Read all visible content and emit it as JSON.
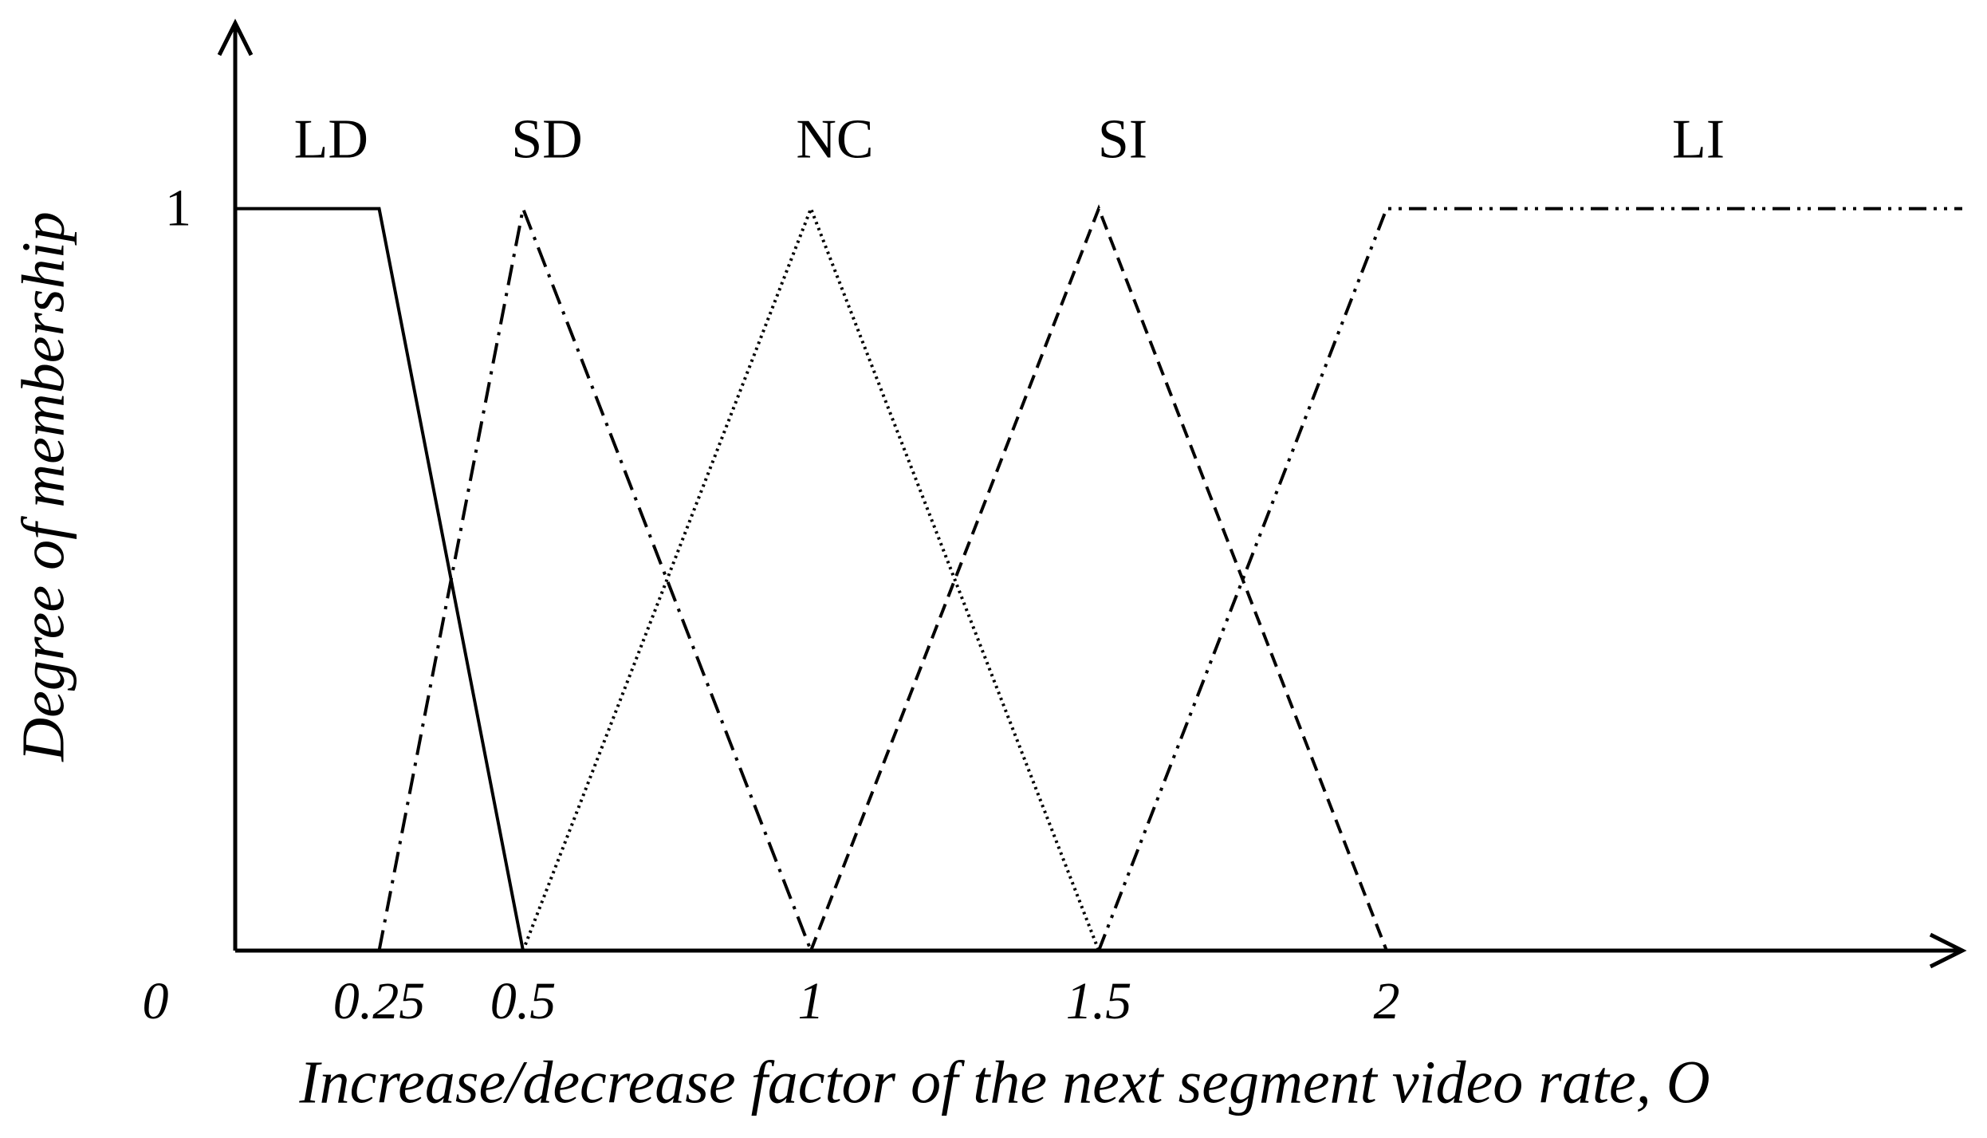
{
  "chart_data": {
    "type": "line",
    "x_label": "Increase/decrease factor of the next segment video rate, O",
    "y_label": "Degree of membership",
    "xlim": [
      0,
      3
    ],
    "ylim": [
      0,
      1.25
    ],
    "xticks": [
      0,
      0.25,
      0.5,
      1,
      1.5,
      2
    ],
    "yticks": [
      1
    ],
    "series": [
      {
        "name": "LD",
        "color": "#000000",
        "dash": "solid",
        "x": [
          0,
          0.25,
          0.5
        ],
        "values": [
          1,
          1,
          0
        ]
      },
      {
        "name": "SD",
        "color": "#000000",
        "dash": "dashdot",
        "x": [
          0.25,
          0.5,
          1
        ],
        "values": [
          0,
          1,
          0
        ]
      },
      {
        "name": "NC",
        "color": "#000000",
        "dash": "dotted",
        "x": [
          0.5,
          1,
          1.5
        ],
        "values": [
          0,
          1,
          0
        ]
      },
      {
        "name": "SI",
        "color": "#000000",
        "dash": "dashed",
        "x": [
          1,
          1.5,
          2
        ],
        "values": [
          0,
          1,
          0
        ]
      },
      {
        "name": "LI",
        "color": "#000000",
        "dash": "dashdotdot",
        "x": [
          1.5,
          2,
          3
        ],
        "values": [
          0,
          1,
          1
        ]
      }
    ]
  }
}
